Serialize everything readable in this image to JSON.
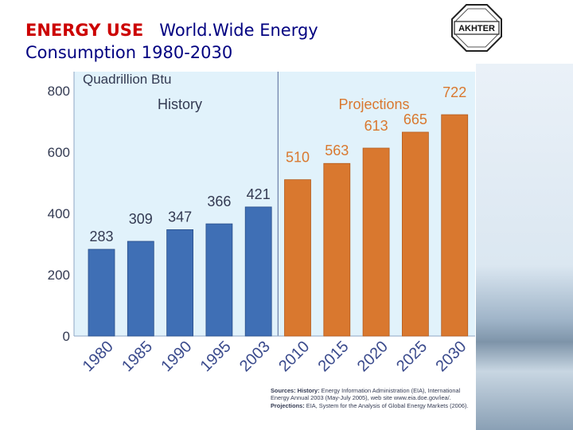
{
  "slide": {
    "title_red": "ENERGY USE",
    "title_blue_line1": "World.Wide Energy",
    "title_blue_line2": "Consumption 1980-2030",
    "logo_text": "AKHTER"
  },
  "chart_data": {
    "type": "bar",
    "title": "",
    "ylabel": "Quadrillion Btu",
    "ylim": [
      0,
      800
    ],
    "yticks": [
      0,
      200,
      400,
      600,
      800
    ],
    "categories": [
      "1980",
      "1985",
      "1990",
      "1995",
      "2003",
      "2010",
      "2015",
      "2020",
      "2025",
      "2030"
    ],
    "values": [
      283,
      309,
      347,
      366,
      421,
      510,
      563,
      613,
      665,
      722
    ],
    "value_labels": [
      "283",
      "309",
      "347",
      "366",
      "421",
      "510",
      "563",
      "613",
      "665",
      "722"
    ],
    "sections": [
      {
        "label": "History",
        "start": 0,
        "end": 4,
        "color": "#3f6fb5"
      },
      {
        "label": "Projections",
        "start": 5,
        "end": 9,
        "color": "#d9782f"
      }
    ],
    "plot_background": "#e1f2fb",
    "grid": false
  },
  "sources": {
    "history_label": "Sources: History:",
    "history_text": "Energy Information Administration (EIA), International Energy Annual 2003 (May-July 2005), web site www.eia.doe.gov/iea/.",
    "projections_label": "Projections:",
    "projections_text": "EIA, System for the Analysis of Global Energy Markets (2006)."
  }
}
